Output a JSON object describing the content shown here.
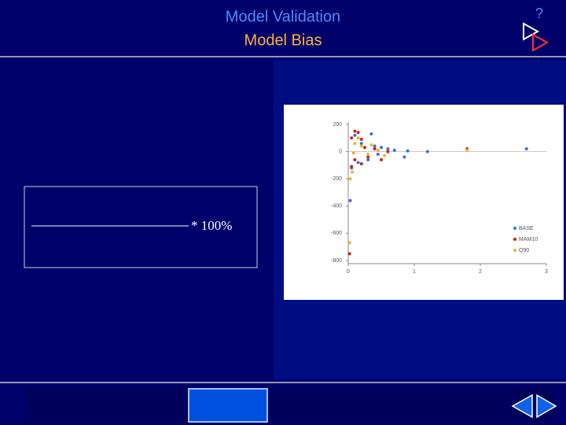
{
  "header": {
    "title": "Model Validation",
    "subtitle": "Model Bias",
    "help": "?"
  },
  "formula": {
    "suffix": "* 100%"
  },
  "chart_data": {
    "type": "scatter",
    "series": [
      {
        "name": "BASE",
        "color": "#3a6fd8",
        "x": [
          0.03,
          0.1,
          0.35,
          0.2,
          0.4,
          0.5,
          0.6,
          0.7,
          0.85,
          0.9,
          1.2,
          2.7,
          0.3,
          0.15,
          0.05,
          0.45
        ],
        "values": [
          -360,
          120,
          130,
          60,
          40,
          30,
          20,
          10,
          -40,
          5,
          0,
          20,
          -60,
          -80,
          -120,
          -20
        ]
      },
      {
        "name": "MAM10",
        "color": "#cc2020",
        "x": [
          0.02,
          0.05,
          0.1,
          0.15,
          0.2,
          0.05,
          0.1,
          0.2,
          0.3,
          0.4,
          0.5,
          0.25,
          0.6,
          1.8
        ],
        "values": [
          -750,
          100,
          150,
          140,
          90,
          -110,
          -60,
          -90,
          -40,
          20,
          -60,
          30,
          0,
          20
        ]
      },
      {
        "name": "Q90",
        "color": "#e8b830",
        "x": [
          0.02,
          0.03,
          0.06,
          0.1,
          0.15,
          0.2,
          0.3,
          0.45,
          0.55,
          1.8,
          0.08,
          0.35
        ],
        "values": [
          -670,
          -200,
          -150,
          60,
          100,
          40,
          -20,
          10,
          -30,
          10,
          -10,
          50
        ]
      }
    ],
    "xlim": [
      0,
      3
    ],
    "xticks": [
      0,
      1,
      2,
      3
    ],
    "ylim": [
      -800,
      200
    ],
    "yticks": [
      200,
      0,
      -200,
      -400,
      -600,
      -800
    ],
    "legend": "lower right"
  }
}
